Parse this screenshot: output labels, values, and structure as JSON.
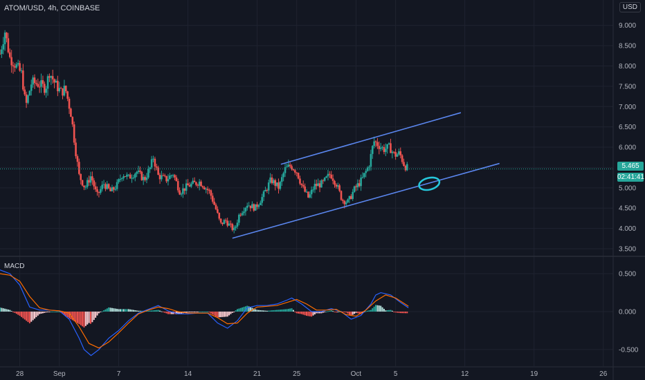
{
  "header": {
    "symbol": "ATOM/USD",
    "interval": "4h",
    "exchange": "COINBASE"
  },
  "currency_button": "USD",
  "current_price": "5.465",
  "countdown": "02:41:41",
  "macd_label": "MACD",
  "colors": {
    "up": "#26a69a",
    "down": "#ef5350",
    "channel": "#5b87f0",
    "macd_line": "#2962ff",
    "signal_line": "#ff6d00",
    "highlight": "#26c6da",
    "grid": "#1f2330",
    "background": "#131722"
  },
  "chart_data": [
    {
      "type": "candlestick",
      "title": "ATOM/USD, 4h, COINBASE",
      "x_tick_labels": [
        "28",
        "Sep",
        "7",
        "14",
        "21",
        "25",
        "Oct",
        "5",
        "12",
        "19",
        "26"
      ],
      "x_range_days": [
        -5,
        57
      ],
      "y_tick_labels": [
        "9.000",
        "8.500",
        "8.000",
        "7.500",
        "7.000",
        "6.500",
        "6.000",
        "5.500",
        "5.000",
        "4.500",
        "4.000",
        "3.500"
      ],
      "ylim": [
        3.33,
        9.25
      ],
      "grid": true,
      "close_path": [
        [
          -5.0,
          8.3
        ],
        [
          -4.5,
          8.85
        ],
        [
          -4.0,
          8.2
        ],
        [
          -3.5,
          8.05
        ],
        [
          -2.8,
          7.8
        ],
        [
          -2.4,
          7.0
        ],
        [
          -1.8,
          7.6
        ],
        [
          -1.0,
          7.55
        ],
        [
          -0.4,
          7.45
        ],
        [
          0.0,
          7.85
        ],
        [
          0.6,
          7.55
        ],
        [
          1.2,
          7.35
        ],
        [
          1.6,
          7.45
        ],
        [
          2.2,
          6.8
        ],
        [
          2.6,
          6.0
        ],
        [
          3.0,
          5.3
        ],
        [
          3.6,
          5.0
        ],
        [
          4.2,
          5.3
        ],
        [
          4.8,
          4.8
        ],
        [
          5.5,
          5.1
        ],
        [
          6.2,
          4.9
        ],
        [
          6.8,
          5.05
        ],
        [
          7.4,
          5.35
        ],
        [
          8.0,
          5.25
        ],
        [
          8.8,
          5.4
        ],
        [
          9.6,
          5.2
        ],
        [
          10.2,
          5.5
        ],
        [
          10.5,
          5.75
        ],
        [
          11.0,
          5.3
        ],
        [
          11.8,
          5.2
        ],
        [
          12.5,
          5.35
        ],
        [
          13.2,
          4.9
        ],
        [
          14.0,
          5.05
        ],
        [
          15.2,
          5.15
        ],
        [
          16.2,
          4.9
        ],
        [
          16.8,
          4.5
        ],
        [
          17.3,
          4.1
        ],
        [
          17.8,
          4.2
        ],
        [
          18.3,
          4.05
        ],
        [
          18.7,
          3.95
        ],
        [
          19.2,
          4.35
        ],
        [
          20.0,
          4.6
        ],
        [
          20.8,
          4.5
        ],
        [
          21.6,
          4.8
        ],
        [
          22.4,
          5.2
        ],
        [
          23.2,
          5.0
        ],
        [
          23.8,
          5.45
        ],
        [
          24.4,
          5.55
        ],
        [
          25.0,
          5.4
        ],
        [
          25.6,
          5.0
        ],
        [
          26.2,
          4.75
        ],
        [
          26.8,
          5.05
        ],
        [
          27.6,
          5.1
        ],
        [
          28.4,
          5.35
        ],
        [
          29.0,
          5.1
        ],
        [
          29.6,
          4.7
        ],
        [
          30.2,
          4.65
        ],
        [
          30.8,
          4.95
        ],
        [
          31.6,
          5.2
        ],
        [
          32.3,
          5.55
        ],
        [
          32.8,
          6.15
        ],
        [
          33.3,
          6.05
        ],
        [
          33.8,
          5.95
        ],
        [
          34.4,
          6.0
        ],
        [
          34.9,
          5.8
        ],
        [
          35.4,
          5.85
        ],
        [
          35.9,
          5.55
        ],
        [
          36.3,
          5.465
        ]
      ],
      "channel_lines": [
        {
          "name": "upper",
          "from": [
            23.4,
            5.58
          ],
          "to": [
            41.6,
            6.85
          ]
        },
        {
          "name": "lower",
          "from": [
            18.5,
            3.76
          ],
          "to": [
            45.5,
            5.6
          ]
        }
      ],
      "highlight_ellipse": {
        "x": 38.4,
        "y": 5.1
      },
      "last_price": 5.465
    },
    {
      "type": "line",
      "title": "MACD",
      "y_tick_labels": [
        "0.500",
        "0.000",
        "-0.500"
      ],
      "ylim": [
        -0.72,
        0.72
      ],
      "series": [
        {
          "name": "MACD",
          "values": [
            [
              -5.0,
              0.55
            ],
            [
              -4.0,
              0.5
            ],
            [
              -3.0,
              0.35
            ],
            [
              -2.0,
              0.06
            ],
            [
              -1.0,
              0.02
            ],
            [
              0.0,
              0.02
            ],
            [
              1.0,
              0.01
            ],
            [
              2.0,
              -0.1
            ],
            [
              3.0,
              -0.35
            ],
            [
              3.5,
              -0.5
            ],
            [
              4.2,
              -0.58
            ],
            [
              5.0,
              -0.5
            ],
            [
              6.0,
              -0.35
            ],
            [
              7.0,
              -0.25
            ],
            [
              8.0,
              -0.12
            ],
            [
              9.0,
              -0.02
            ],
            [
              10.0,
              0.03
            ],
            [
              11.0,
              0.08
            ],
            [
              12.0,
              0.01
            ],
            [
              13.0,
              -0.03
            ],
            [
              14.0,
              -0.03
            ],
            [
              15.0,
              -0.02
            ],
            [
              16.0,
              -0.02
            ],
            [
              17.0,
              -0.15
            ],
            [
              18.0,
              -0.22
            ],
            [
              19.0,
              -0.12
            ],
            [
              20.0,
              0.05
            ],
            [
              21.0,
              0.08
            ],
            [
              22.0,
              0.08
            ],
            [
              23.0,
              0.1
            ],
            [
              24.0,
              0.15
            ],
            [
              24.5,
              0.18
            ],
            [
              25.5,
              0.1
            ],
            [
              26.5,
              0.0
            ],
            [
              27.5,
              0.0
            ],
            [
              28.5,
              0.04
            ],
            [
              29.5,
              0.0
            ],
            [
              30.5,
              -0.1
            ],
            [
              31.5,
              -0.05
            ],
            [
              32.5,
              0.1
            ],
            [
              33.0,
              0.22
            ],
            [
              33.5,
              0.25
            ],
            [
              34.5,
              0.22
            ],
            [
              35.5,
              0.12
            ],
            [
              36.3,
              0.05
            ]
          ]
        },
        {
          "name": "Signal",
          "values": [
            [
              -5.0,
              0.5
            ],
            [
              -4.0,
              0.48
            ],
            [
              -3.0,
              0.4
            ],
            [
              -2.0,
              0.2
            ],
            [
              -1.0,
              0.05
            ],
            [
              0.0,
              0.02
            ],
            [
              1.0,
              0.01
            ],
            [
              2.0,
              -0.02
            ],
            [
              3.0,
              -0.2
            ],
            [
              4.0,
              -0.42
            ],
            [
              5.0,
              -0.48
            ],
            [
              6.0,
              -0.4
            ],
            [
              7.0,
              -0.28
            ],
            [
              8.0,
              -0.15
            ],
            [
              9.0,
              -0.03
            ],
            [
              10.0,
              0.02
            ],
            [
              11.0,
              0.06
            ],
            [
              12.0,
              0.04
            ],
            [
              13.0,
              0.0
            ],
            [
              14.0,
              -0.02
            ],
            [
              15.0,
              -0.02
            ],
            [
              16.0,
              -0.02
            ],
            [
              17.0,
              -0.08
            ],
            [
              18.0,
              -0.16
            ],
            [
              19.0,
              -0.15
            ],
            [
              20.0,
              -0.02
            ],
            [
              21.0,
              0.06
            ],
            [
              22.0,
              0.07
            ],
            [
              23.0,
              0.08
            ],
            [
              24.0,
              0.12
            ],
            [
              25.0,
              0.16
            ],
            [
              26.0,
              0.1
            ],
            [
              27.0,
              0.02
            ],
            [
              28.0,
              0.02
            ],
            [
              29.0,
              0.03
            ],
            [
              30.0,
              -0.04
            ],
            [
              31.0,
              -0.06
            ],
            [
              32.0,
              0.02
            ],
            [
              33.0,
              0.14
            ],
            [
              34.0,
              0.22
            ],
            [
              35.0,
              0.18
            ],
            [
              36.3,
              0.07
            ]
          ]
        }
      ]
    }
  ]
}
